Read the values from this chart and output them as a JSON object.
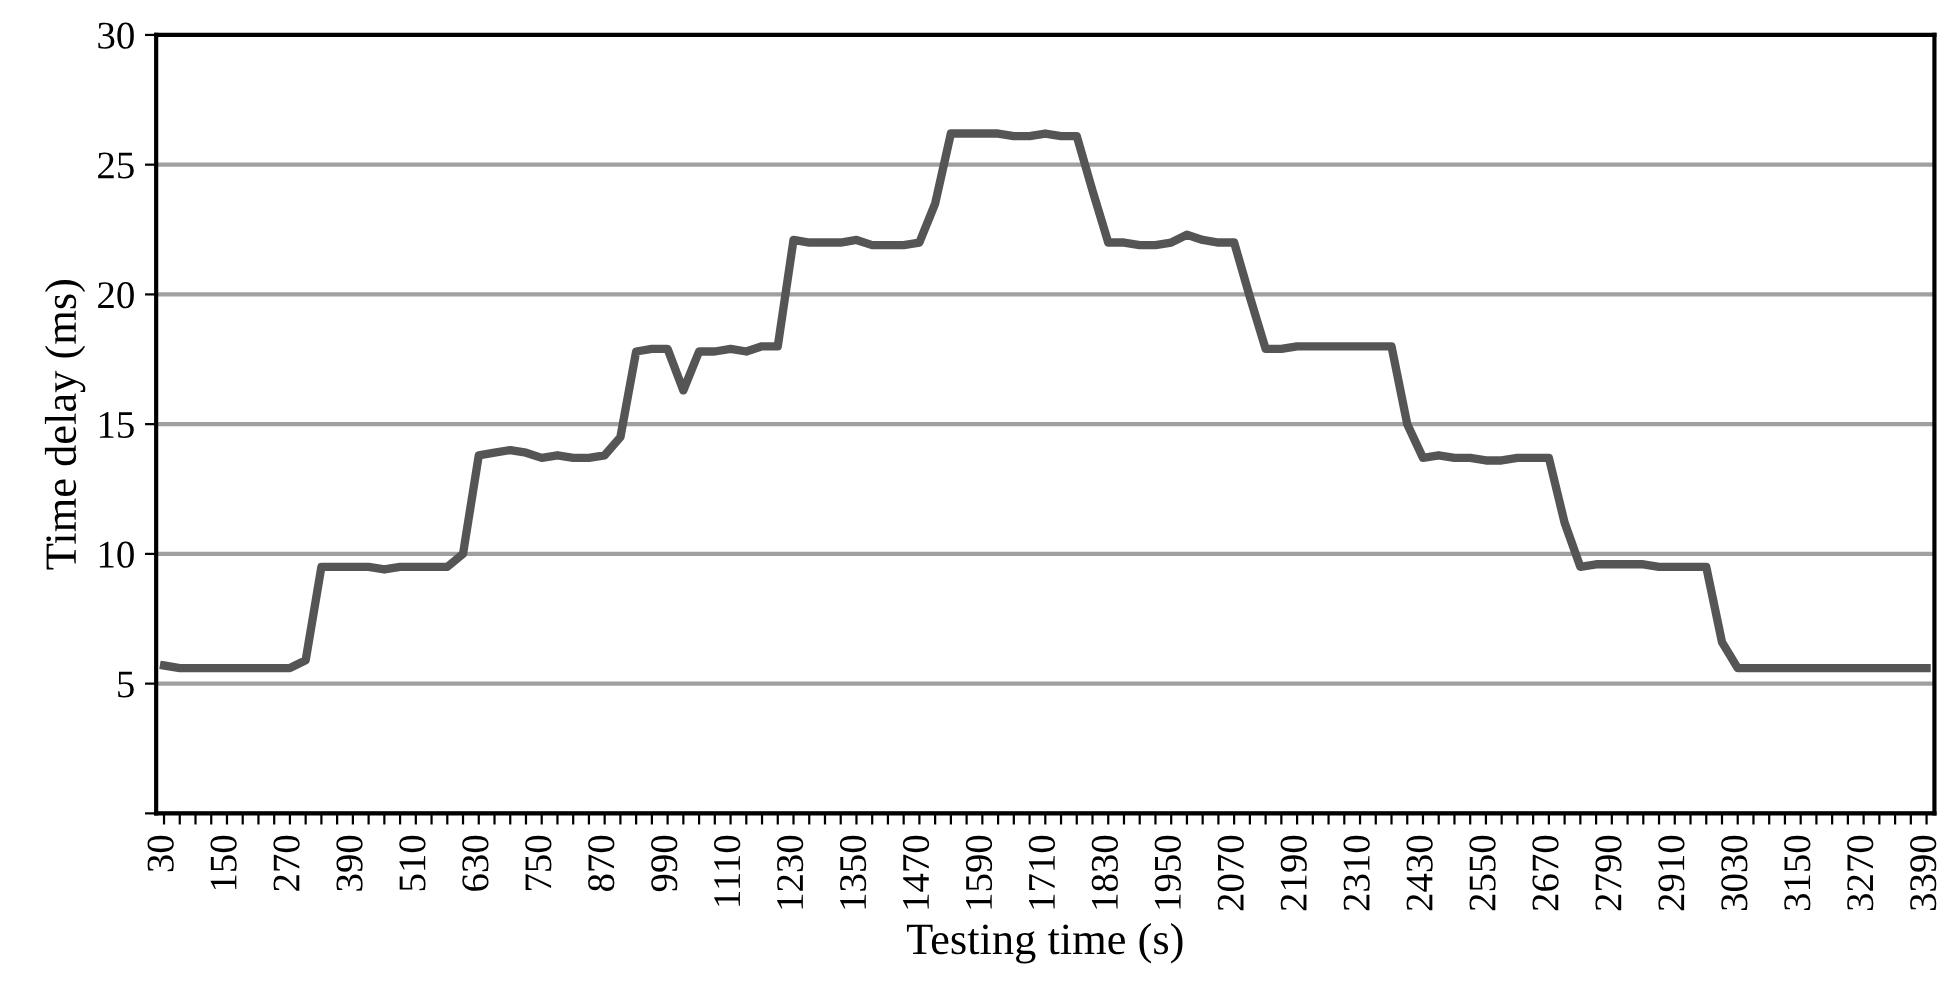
{
  "chart_data": {
    "type": "line",
    "xlabel": "Testing time (s)",
    "ylabel": "Time delay (ms)",
    "categories": [
      "30",
      null,
      null,
      null,
      "150",
      null,
      null,
      null,
      "270",
      null,
      null,
      null,
      "390",
      null,
      null,
      null,
      "510",
      null,
      null,
      null,
      "630",
      null,
      null,
      null,
      "750",
      null,
      null,
      null,
      "870",
      null,
      null,
      null,
      "990",
      null,
      null,
      null,
      "1110",
      null,
      null,
      null,
      "1230",
      null,
      null,
      null,
      "1350",
      null,
      null,
      null,
      "1470",
      null,
      null,
      null,
      "1590",
      null,
      null,
      null,
      "1710",
      null,
      null,
      null,
      "1830",
      null,
      null,
      null,
      "1950",
      null,
      null,
      null,
      "2070",
      null,
      null,
      null,
      "2190",
      null,
      null,
      null,
      "2310",
      null,
      null,
      null,
      "2430",
      null,
      null,
      null,
      "2550",
      null,
      null,
      null,
      "2670",
      null,
      null,
      null,
      "2790",
      null,
      null,
      null,
      "2910",
      null,
      null,
      null,
      "3030",
      null,
      null,
      null,
      "3150",
      null,
      null,
      null,
      "3270",
      null,
      null,
      null,
      "3390"
    ],
    "series": [
      {
        "color": "#555555",
        "values": [
          5.7,
          5.6,
          5.6,
          5.6,
          5.6,
          5.6,
          5.6,
          5.6,
          5.6,
          5.9,
          9.5,
          9.5,
          9.5,
          9.5,
          9.4,
          9.5,
          9.5,
          9.5,
          9.5,
          10.0,
          13.8,
          13.9,
          14.0,
          13.9,
          13.7,
          13.8,
          13.7,
          13.7,
          13.8,
          14.5,
          17.8,
          17.9,
          17.9,
          16.3,
          17.8,
          17.8,
          17.9,
          17.8,
          18.0,
          18.0,
          22.1,
          22.0,
          22.0,
          22.0,
          22.1,
          21.9,
          21.9,
          21.9,
          22.0,
          23.5,
          26.2,
          26.2,
          26.2,
          26.2,
          26.1,
          26.1,
          26.2,
          26.1,
          26.1,
          24.0,
          22.0,
          22.0,
          21.9,
          21.9,
          22.0,
          22.3,
          22.1,
          22.0,
          22.0,
          19.9,
          17.9,
          17.9,
          18.0,
          18.0,
          18.0,
          18.0,
          18.0,
          18.0,
          18.0,
          15.0,
          13.7,
          13.8,
          13.7,
          13.7,
          13.6,
          13.6,
          13.7,
          13.7,
          13.7,
          11.2,
          9.5,
          9.6,
          9.6,
          9.6,
          9.6,
          9.5,
          9.5,
          9.5,
          9.5,
          6.6,
          5.6,
          5.6,
          5.6,
          5.6,
          5.6,
          5.6,
          5.6,
          5.6,
          5.6,
          5.6,
          5.6,
          5.6,
          5.6
        ]
      }
    ],
    "ylim": [
      0,
      30
    ],
    "yticks": [
      {
        "value": 0,
        "label": null
      },
      5,
      10,
      15,
      20,
      25,
      30
    ],
    "grid": "y",
    "marker": "none",
    "line_style": "solid"
  }
}
